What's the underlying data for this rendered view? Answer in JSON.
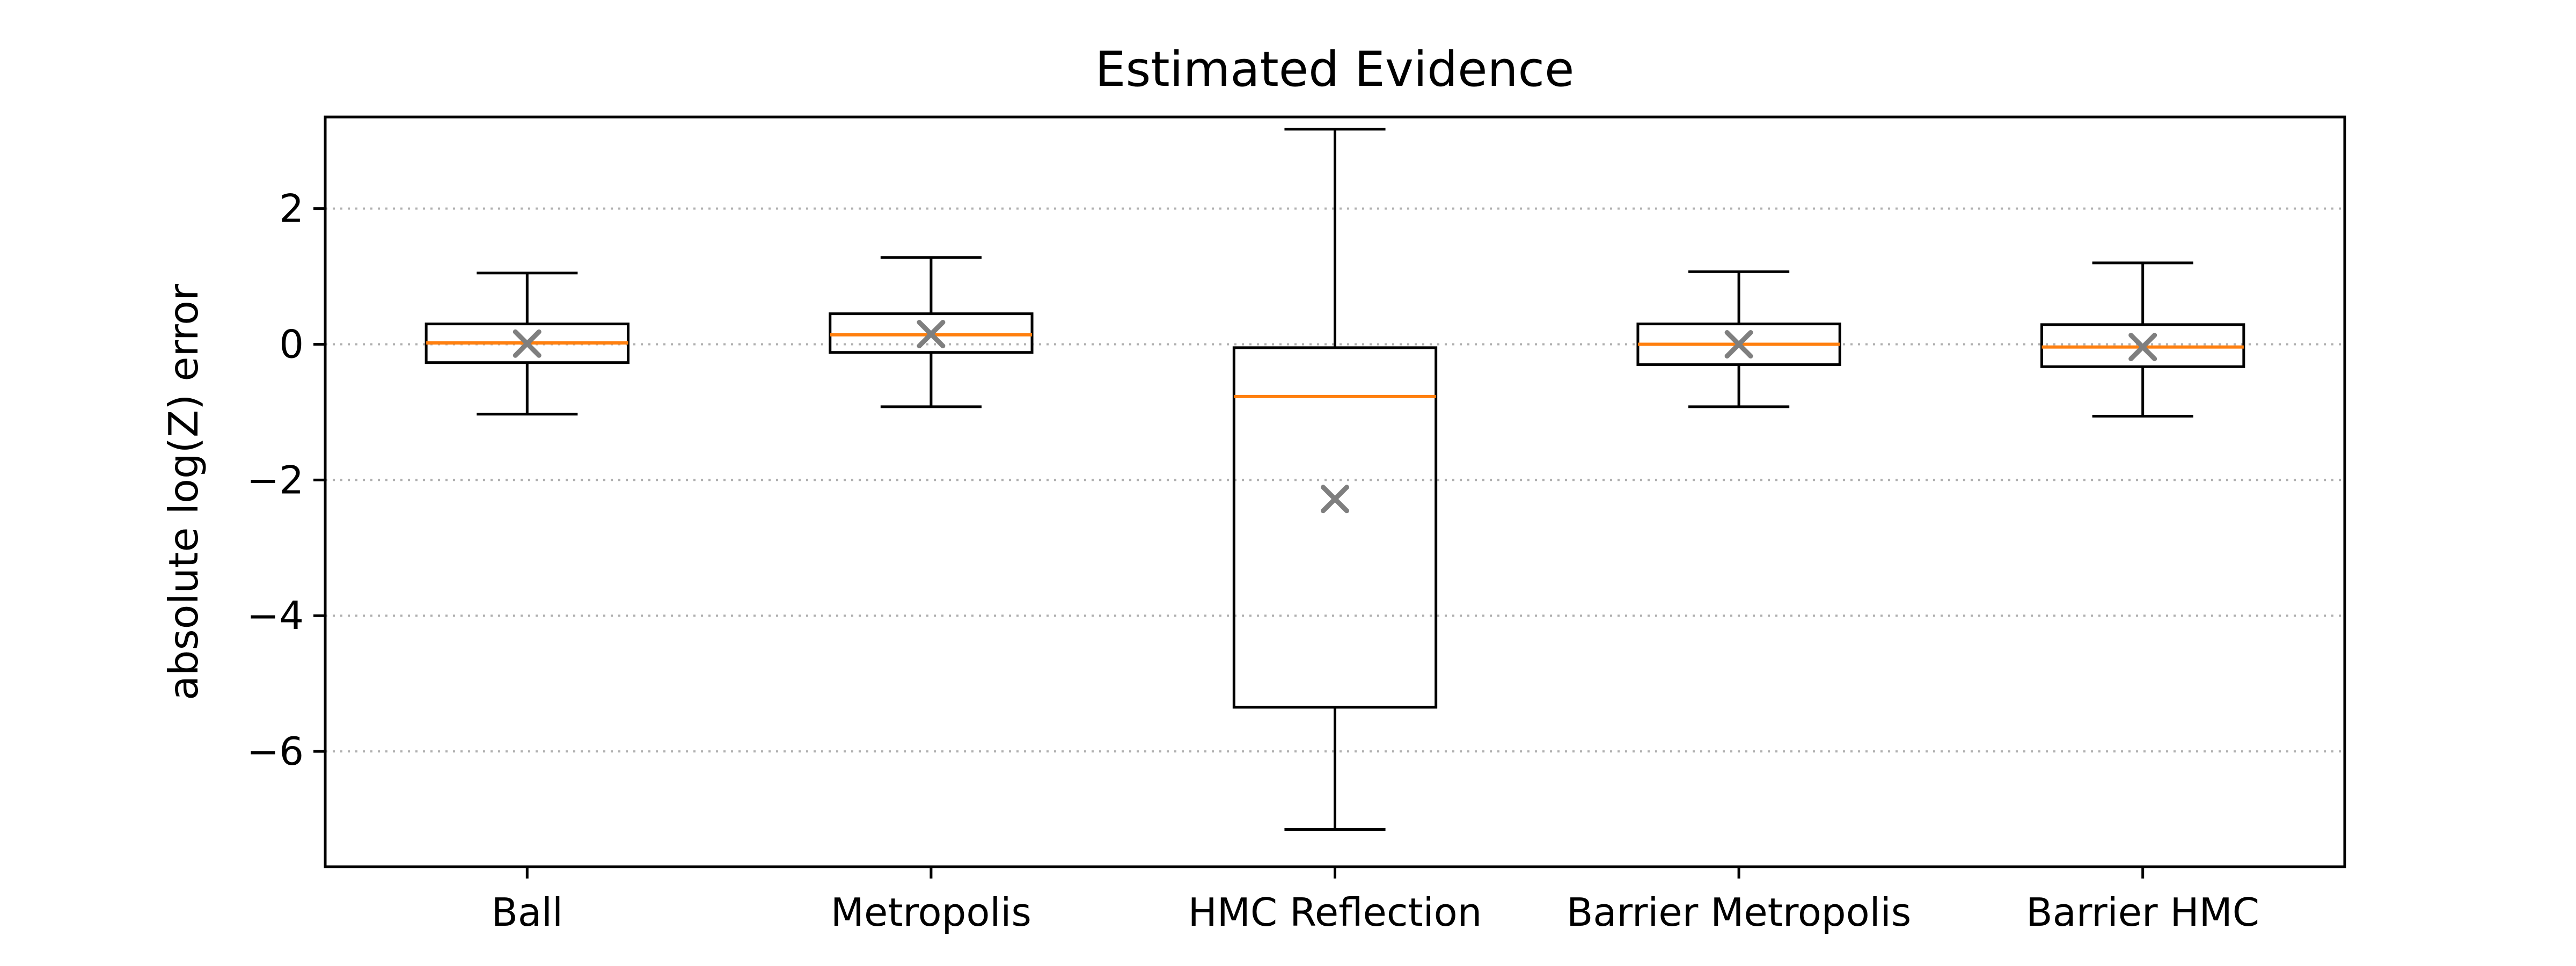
{
  "chart_data": {
    "type": "box",
    "title": "Estimated Evidence",
    "xlabel": "",
    "ylabel": "absolute log(Z) error",
    "ylim": [
      -7.7,
      3.35
    ],
    "yticks": [
      2,
      0,
      -2,
      -4,
      -6
    ],
    "ytick_labels": [
      "2",
      "0",
      "−2",
      "−4",
      "−6"
    ],
    "grid": {
      "y": true,
      "style": "dotted"
    },
    "categories": [
      "Ball",
      "Metropolis",
      "HMC Reflection",
      "Barrier Metropolis",
      "Barrier HMC"
    ],
    "boxes": [
      {
        "category": "Ball",
        "whisker_low": -1.03,
        "q1": -0.27,
        "median": 0.02,
        "q3": 0.3,
        "whisker_high": 1.05,
        "mean": 0.01
      },
      {
        "category": "Metropolis",
        "whisker_low": -0.92,
        "q1": -0.12,
        "median": 0.14,
        "q3": 0.45,
        "whisker_high": 1.28,
        "mean": 0.15
      },
      {
        "category": "HMC Reflection",
        "whisker_low": -7.15,
        "q1": -5.35,
        "median": -0.77,
        "q3": -0.05,
        "whisker_high": 3.17,
        "mean": -2.28
      },
      {
        "category": "Barrier Metropolis",
        "whisker_low": -0.92,
        "q1": -0.3,
        "median": 0.0,
        "q3": 0.3,
        "whisker_high": 1.07,
        "mean": 0.0
      },
      {
        "category": "Barrier HMC",
        "whisker_low": -1.06,
        "q1": -0.33,
        "median": -0.04,
        "q3": 0.29,
        "whisker_high": 1.2,
        "mean": -0.04
      }
    ],
    "colors": {
      "box": "#000000",
      "median": "#ff7f0e",
      "mean_marker": "#7f7f7f",
      "grid": "#b0b0b0"
    }
  }
}
